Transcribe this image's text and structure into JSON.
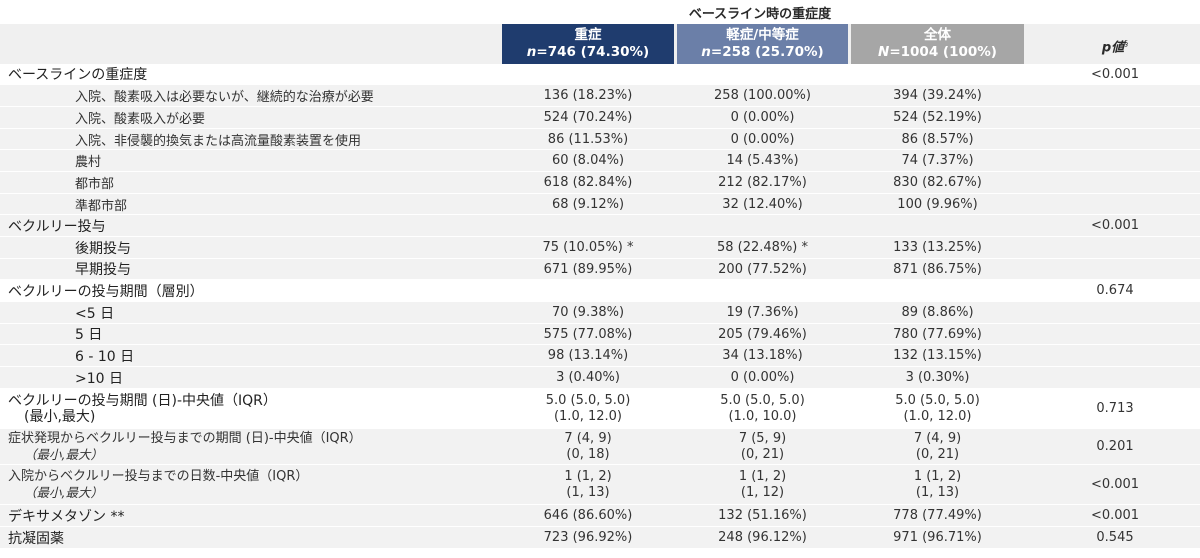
{
  "super_header": "ベースライン時の重症度",
  "columns": {
    "severe": {
      "title": "重症",
      "n": "n=746 (74.30%)"
    },
    "mild": {
      "title": "軽症/中等症",
      "n": "n=258 (25.70%)"
    },
    "total": {
      "title": "全体",
      "n": "N=1004 (100%)"
    },
    "p": {
      "title": "p値",
      "mark": "§"
    }
  },
  "colors": {
    "severe": "#1f3c6e",
    "mild": "#6b7fa8",
    "total": "#a6a6a6",
    "stripe": "#f2f2f2"
  },
  "rows": [
    {
      "label": "ベースラインの重症度",
      "severe": "",
      "mild": "",
      "total": "",
      "p": "<0.001"
    },
    {
      "label": "入院、酸素吸入は必要ないが、継続的な治療が必要",
      "severe": "136 (18.23%)",
      "mild": "258 (100.00%)",
      "total": "394 (39.24%)",
      "p": ""
    },
    {
      "label": "入院、酸素吸入が必要",
      "severe": "524 (70.24%)",
      "mild": "0 (0.00%)",
      "total": "524 (52.19%)",
      "p": ""
    },
    {
      "label": "入院、非侵襲的換気または高流量酸素装置を使用",
      "severe": "86 (11.53%)",
      "mild": "0 (0.00%)",
      "total": "86 (8.57%)",
      "p": ""
    },
    {
      "label": "農村",
      "severe": "60 (8.04%)",
      "mild": "14 (5.43%)",
      "total": "74 (7.37%)",
      "p": ""
    },
    {
      "label": "都市部",
      "severe": "618 (82.84%)",
      "mild": "212 (82.17%)",
      "total": "830 (82.67%)",
      "p": ""
    },
    {
      "label": "準都市部",
      "severe": "68 (9.12%)",
      "mild": "32 (12.40%)",
      "total": "100 (9.96%)",
      "p": ""
    },
    {
      "label": "ベクルリー投与",
      "severe": "",
      "mild": "",
      "total": "",
      "p": "<0.001"
    },
    {
      "label": "後期投与",
      "severe": "75 (10.05%) *",
      "mild": "58 (22.48%) *",
      "total": "133 (13.25%)",
      "p": ""
    },
    {
      "label": "早期投与",
      "severe": "671 (89.95%)",
      "mild": "200 (77.52%)",
      "total": "871 (86.75%)",
      "p": ""
    },
    {
      "label": "ベクルリーの投与期間（層別）",
      "severe": "",
      "mild": "",
      "total": "",
      "p": "0.674"
    },
    {
      "label": "<5 日",
      "severe": "70 (9.38%)",
      "mild": "19 (7.36%)",
      "total": "89 (8.86%)",
      "p": ""
    },
    {
      "label": "5 日",
      "severe": "575 (77.08%)",
      "mild": "205 (79.46%)",
      "total": "780 (77.69%)",
      "p": ""
    },
    {
      "label": "6 - 10 日",
      "severe": "98 (13.14%)",
      "mild": "34 (13.18%)",
      "total": "132 (13.15%)",
      "p": ""
    },
    {
      "label": ">10 日",
      "severe": "3 (0.40%)",
      "mild": "0 (0.00%)",
      "total": "3 (0.30%)",
      "p": ""
    },
    {
      "label": "ベクルリーの投与期間 (日)-中央値（IQR）",
      "label2": "(最小,最大)",
      "severe": "5.0 (5.0, 5.0)",
      "severe2": "(1.0, 12.0)",
      "mild": "5.0 (5.0, 5.0)",
      "mild2": "(1.0, 10.0)",
      "total": "5.0 (5.0, 5.0)",
      "total2": "(1.0, 12.0)",
      "p": "0.713"
    },
    {
      "label": "症状発現からベクルリー投与までの期間 (日)-中央値（IQR）",
      "label2": "（最小,最大）",
      "severe": "7 (4, 9)",
      "severe2": "(0, 18)",
      "mild": "7 (5, 9)",
      "mild2": "(0, 21)",
      "total": "7 (4, 9)",
      "total2": "(0, 21)",
      "p": "0.201"
    },
    {
      "label": "入院からベクルリー投与までの日数-中央値（IQR）",
      "label2": "（最小,最大）",
      "severe": "1 (1, 2)",
      "severe2": "(1, 13)",
      "mild": "1 (1, 2)",
      "mild2": "(1, 12)",
      "total": "1 (1, 2)",
      "total2": "(1, 13)",
      "p": "<0.001"
    },
    {
      "label": "デキサメタゾン **",
      "severe": "646 (86.60%)",
      "mild": "132 (51.16%)",
      "total": "778 (77.49%)",
      "p": "<0.001"
    },
    {
      "label": "抗凝固薬",
      "severe": "723 (96.92%)",
      "mild": "248 (96.12%)",
      "total": "971 (96.71%)",
      "p": "0.545"
    }
  ]
}
